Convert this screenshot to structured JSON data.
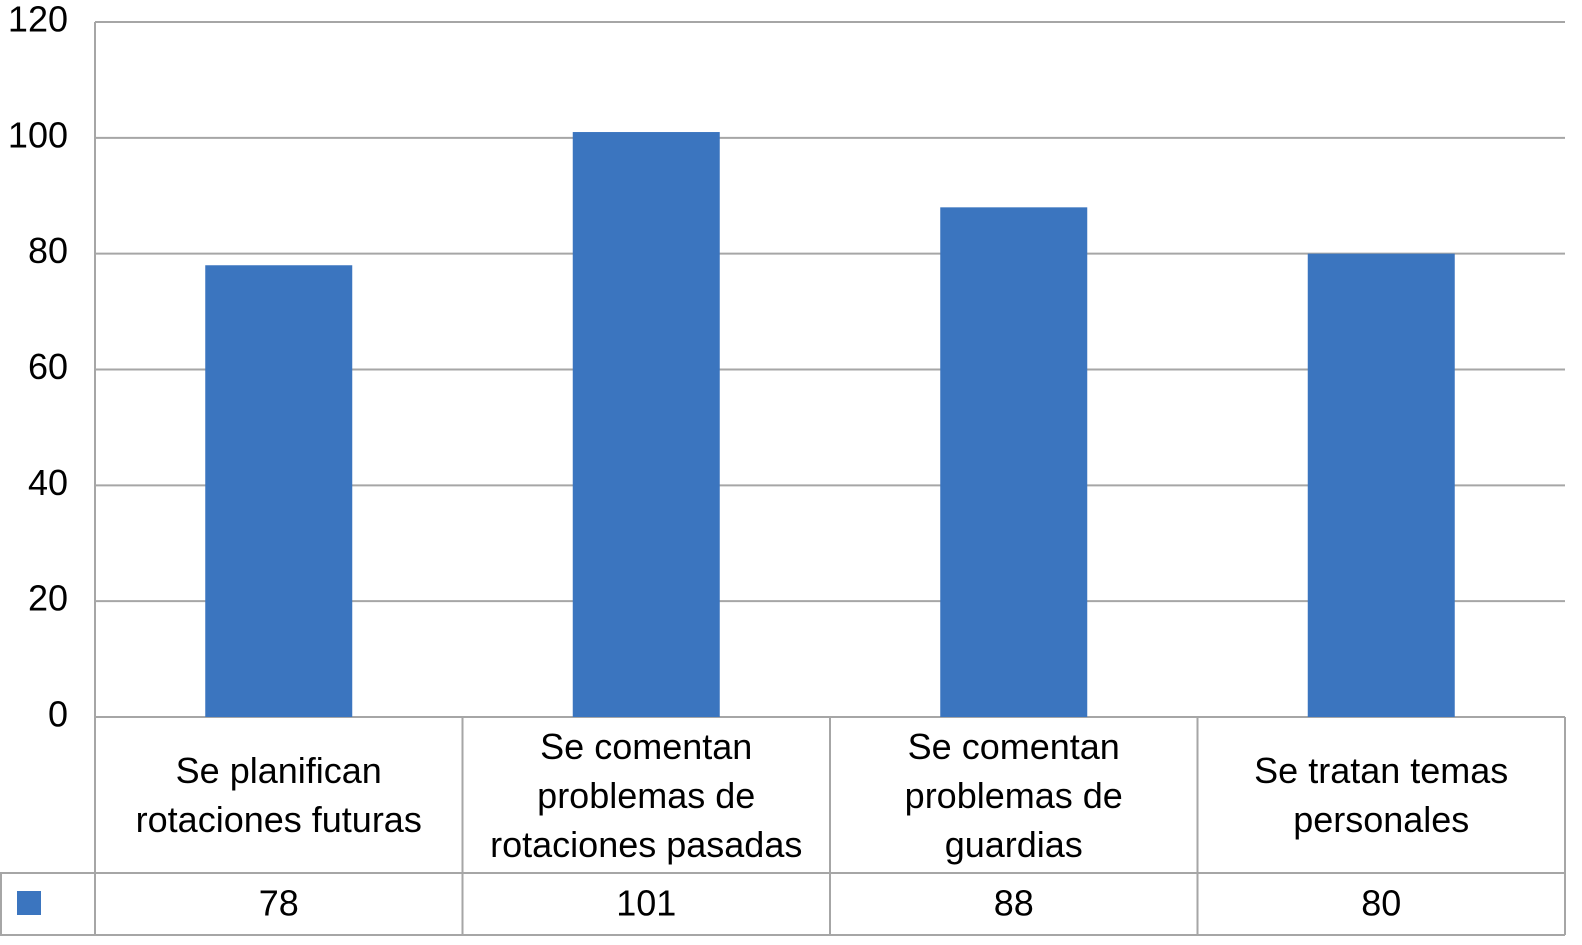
{
  "chart_data": {
    "type": "bar",
    "categories": [
      "Se planifican rotaciones futuras",
      "Se comentan problemas de rotaciones pasadas",
      "Se comentan problemas de guardias",
      "Se tratan temas personales"
    ],
    "values": [
      78,
      101,
      88,
      80
    ],
    "color": "#3b75bf",
    "ylim": [
      0,
      120
    ],
    "yticks": [
      0,
      20,
      40,
      60,
      80,
      100,
      120
    ],
    "grid": true
  }
}
